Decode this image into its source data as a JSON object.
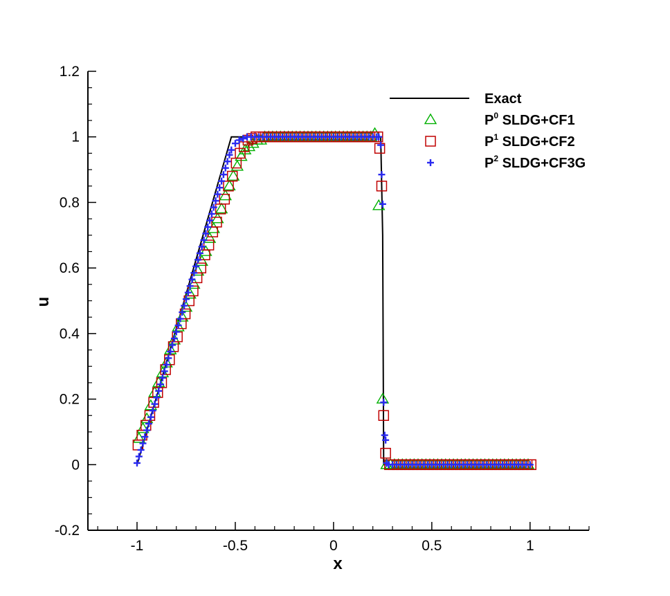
{
  "chart_data": {
    "type": "line",
    "xlabel": "x",
    "ylabel": "u",
    "xlim": [
      -1.25,
      1.3
    ],
    "ylim": [
      -0.2,
      1.2
    ],
    "x_ticks": [
      -1,
      -0.5,
      0,
      0.5,
      1
    ],
    "x_tick_labels": [
      "-1",
      "-0.5",
      "0",
      "0.5",
      "1"
    ],
    "y_ticks": [
      -0.2,
      0,
      0.2,
      0.4,
      0.6,
      0.8,
      1,
      1.2
    ],
    "y_tick_labels": [
      "-0.2",
      "0",
      "0.2",
      "0.4",
      "0.6",
      "0.8",
      "1",
      "1.2"
    ],
    "grid": false,
    "legend_position": "top-right",
    "series": [
      {
        "name": "Exact",
        "style": "line",
        "color": "#000000",
        "x": [
          -1.0,
          -0.52,
          0.24,
          0.25,
          0.255,
          1.0
        ],
        "y": [
          0.0,
          1.0,
          1.0,
          0.7,
          0.0,
          0.0
        ]
      },
      {
        "name_base": "P",
        "name_sup": "0",
        "name_rest": " SLDG+CF1",
        "marker": "triangle",
        "color": "#00b000",
        "x": [
          -0.99,
          -0.97,
          -0.95,
          -0.93,
          -0.91,
          -0.89,
          -0.87,
          -0.85,
          -0.83,
          -0.81,
          -0.79,
          -0.77,
          -0.75,
          -0.73,
          -0.71,
          -0.69,
          -0.67,
          -0.65,
          -0.63,
          -0.61,
          -0.59,
          -0.57,
          -0.55,
          -0.53,
          -0.51,
          -0.49,
          -0.47,
          -0.45,
          -0.43,
          -0.41,
          -0.39,
          -0.37,
          -0.35,
          -0.33,
          -0.31,
          -0.29,
          -0.27,
          -0.25,
          -0.23,
          -0.21,
          -0.19,
          -0.17,
          -0.15,
          -0.13,
          -0.11,
          -0.09,
          -0.07,
          -0.05,
          -0.03,
          -0.01,
          0.01,
          0.03,
          0.05,
          0.07,
          0.09,
          0.11,
          0.13,
          0.15,
          0.17,
          0.19,
          0.21,
          0.23,
          0.25,
          0.27,
          0.29,
          0.31,
          0.33,
          0.35,
          0.37,
          0.39,
          0.41,
          0.43,
          0.45,
          0.47,
          0.49,
          0.51,
          0.53,
          0.55,
          0.57,
          0.59,
          0.61,
          0.63,
          0.65,
          0.67,
          0.69,
          0.71,
          0.73,
          0.75,
          0.77,
          0.79,
          0.81,
          0.83,
          0.85,
          0.87,
          0.89,
          0.91,
          0.93,
          0.95,
          0.97,
          0.99
        ],
        "y": [
          0.08,
          0.11,
          0.14,
          0.18,
          0.22,
          0.25,
          0.28,
          0.31,
          0.35,
          0.38,
          0.42,
          0.45,
          0.48,
          0.52,
          0.55,
          0.59,
          0.62,
          0.65,
          0.69,
          0.72,
          0.75,
          0.78,
          0.82,
          0.85,
          0.88,
          0.91,
          0.94,
          0.96,
          0.97,
          0.98,
          0.99,
          0.99,
          1.0,
          1.0,
          1.0,
          1.0,
          1.0,
          1.0,
          1.0,
          1.0,
          1.0,
          1.0,
          1.0,
          1.0,
          1.0,
          1.0,
          1.0,
          1.0,
          1.0,
          1.0,
          1.0,
          1.0,
          1.0,
          1.0,
          1.0,
          1.0,
          1.0,
          1.0,
          1.0,
          1.0,
          1.01,
          0.79,
          0.2,
          0.0,
          0.0,
          0.0,
          0.0,
          0.0,
          0.0,
          0.0,
          0.0,
          0.0,
          0.0,
          0.0,
          0.0,
          0.0,
          0.0,
          0.0,
          0.0,
          0.0,
          0.0,
          0.0,
          0.0,
          0.0,
          0.0,
          0.0,
          0.0,
          0.0,
          0.0,
          0.0,
          0.0,
          0.0,
          0.0,
          0.0,
          0.0,
          0.0,
          0.0,
          0.0,
          0.0,
          0.0
        ]
      },
      {
        "name_base": "P",
        "name_sup": "1",
        "name_rest": " SLDG+CF2",
        "marker": "square",
        "color": "#c00000",
        "x": [
          -0.995,
          -0.975,
          -0.955,
          -0.935,
          -0.915,
          -0.895,
          -0.875,
          -0.855,
          -0.835,
          -0.815,
          -0.795,
          -0.775,
          -0.755,
          -0.735,
          -0.715,
          -0.695,
          -0.675,
          -0.655,
          -0.635,
          -0.615,
          -0.595,
          -0.575,
          -0.555,
          -0.535,
          -0.515,
          -0.495,
          -0.475,
          -0.455,
          -0.435,
          -0.415,
          -0.395,
          -0.375,
          -0.355,
          -0.335,
          -0.315,
          -0.295,
          -0.275,
          -0.255,
          -0.235,
          -0.215,
          -0.195,
          -0.175,
          -0.155,
          -0.135,
          -0.115,
          -0.095,
          -0.075,
          -0.055,
          -0.035,
          -0.015,
          0.005,
          0.025,
          0.045,
          0.065,
          0.085,
          0.105,
          0.125,
          0.145,
          0.165,
          0.185,
          0.205,
          0.225,
          0.235,
          0.245,
          0.255,
          0.265,
          0.285,
          0.305,
          0.325,
          0.345,
          0.365,
          0.385,
          0.405,
          0.425,
          0.445,
          0.465,
          0.485,
          0.505,
          0.525,
          0.545,
          0.565,
          0.585,
          0.605,
          0.625,
          0.645,
          0.665,
          0.685,
          0.705,
          0.725,
          0.745,
          0.765,
          0.785,
          0.805,
          0.825,
          0.845,
          0.865,
          0.885,
          0.905,
          0.925,
          0.945,
          0.965,
          0.985,
          1.005
        ],
        "y": [
          0.06,
          0.09,
          0.12,
          0.15,
          0.19,
          0.22,
          0.25,
          0.29,
          0.32,
          0.36,
          0.39,
          0.43,
          0.46,
          0.5,
          0.53,
          0.57,
          0.6,
          0.64,
          0.67,
          0.71,
          0.74,
          0.78,
          0.81,
          0.85,
          0.88,
          0.92,
          0.95,
          0.97,
          0.99,
          0.995,
          1.0,
          1.0,
          1.0,
          1.0,
          1.0,
          1.0,
          1.0,
          1.0,
          1.0,
          1.0,
          1.0,
          1.0,
          1.0,
          1.0,
          1.0,
          1.0,
          1.0,
          1.0,
          1.0,
          1.0,
          1.0,
          1.0,
          1.0,
          1.0,
          1.0,
          1.0,
          1.0,
          1.0,
          1.0,
          1.0,
          1.0,
          1.0,
          0.965,
          0.85,
          0.15,
          0.035,
          0.0,
          0.0,
          0.0,
          0.0,
          0.0,
          0.0,
          0.0,
          0.0,
          0.0,
          0.0,
          0.0,
          0.0,
          0.0,
          0.0,
          0.0,
          0.0,
          0.0,
          0.0,
          0.0,
          0.0,
          0.0,
          0.0,
          0.0,
          0.0,
          0.0,
          0.0,
          0.0,
          0.0,
          0.0,
          0.0,
          0.0,
          0.0,
          0.0,
          0.0,
          0.0,
          0.0,
          0.0
        ]
      },
      {
        "name_base": "P",
        "name_sup": "2",
        "name_rest": " SLDG+CF3G",
        "marker": "plus",
        "color": "#2a2af0",
        "x": [
          -1.0,
          -0.99,
          -0.98,
          -0.97,
          -0.96,
          -0.95,
          -0.94,
          -0.93,
          -0.92,
          -0.91,
          -0.9,
          -0.89,
          -0.88,
          -0.87,
          -0.86,
          -0.85,
          -0.84,
          -0.83,
          -0.82,
          -0.81,
          -0.8,
          -0.79,
          -0.78,
          -0.77,
          -0.76,
          -0.75,
          -0.74,
          -0.73,
          -0.72,
          -0.71,
          -0.7,
          -0.69,
          -0.68,
          -0.67,
          -0.66,
          -0.65,
          -0.64,
          -0.63,
          -0.62,
          -0.61,
          -0.6,
          -0.59,
          -0.58,
          -0.57,
          -0.56,
          -0.55,
          -0.54,
          -0.53,
          -0.52,
          -0.5,
          -0.48,
          -0.46,
          -0.44,
          -0.42,
          -0.4,
          -0.38,
          -0.36,
          -0.34,
          -0.32,
          -0.3,
          -0.28,
          -0.26,
          -0.24,
          -0.22,
          -0.2,
          -0.18,
          -0.16,
          -0.14,
          -0.12,
          -0.1,
          -0.08,
          -0.06,
          -0.04,
          -0.02,
          0.0,
          0.02,
          0.04,
          0.06,
          0.08,
          0.1,
          0.12,
          0.14,
          0.16,
          0.18,
          0.2,
          0.22,
          0.23,
          0.24,
          0.245,
          0.25,
          0.255,
          0.26,
          0.265,
          0.27,
          0.28,
          0.3,
          0.32,
          0.34,
          0.36,
          0.38,
          0.4,
          0.42,
          0.44,
          0.46,
          0.48,
          0.5,
          0.52,
          0.54,
          0.56,
          0.58,
          0.6,
          0.62,
          0.64,
          0.66,
          0.68,
          0.7,
          0.72,
          0.74,
          0.76,
          0.78,
          0.8,
          0.82,
          0.84,
          0.86,
          0.88,
          0.9,
          0.92,
          0.94,
          0.96,
          0.98,
          1.0
        ],
        "y": [
          0.005,
          0.025,
          0.045,
          0.065,
          0.085,
          0.105,
          0.125,
          0.145,
          0.165,
          0.185,
          0.205,
          0.225,
          0.245,
          0.265,
          0.285,
          0.305,
          0.325,
          0.345,
          0.365,
          0.385,
          0.405,
          0.425,
          0.445,
          0.465,
          0.485,
          0.505,
          0.525,
          0.545,
          0.565,
          0.585,
          0.605,
          0.625,
          0.645,
          0.665,
          0.685,
          0.705,
          0.725,
          0.745,
          0.765,
          0.785,
          0.805,
          0.825,
          0.845,
          0.865,
          0.885,
          0.905,
          0.925,
          0.945,
          0.96,
          0.98,
          0.99,
          0.995,
          1.0,
          1.0,
          1.0,
          1.0,
          1.0,
          1.0,
          1.0,
          1.0,
          1.0,
          1.0,
          1.0,
          1.0,
          1.0,
          1.0,
          1.0,
          1.0,
          1.0,
          1.0,
          1.0,
          1.0,
          1.0,
          1.0,
          1.0,
          1.0,
          1.0,
          1.0,
          1.0,
          1.0,
          1.0,
          1.0,
          1.0,
          1.0,
          1.0,
          1.0,
          1.0,
          0.975,
          0.885,
          0.795,
          0.19,
          0.09,
          0.075,
          0.005,
          0.0,
          0.0,
          0.0,
          0.0,
          0.0,
          0.0,
          0.0,
          0.0,
          0.0,
          0.0,
          0.0,
          0.0,
          0.0,
          0.0,
          0.0,
          0.0,
          0.0,
          0.0,
          0.0,
          0.0,
          0.0,
          0.0,
          0.0,
          0.0,
          0.0,
          0.0,
          0.0,
          0.0,
          0.0,
          0.0,
          0.0,
          0.0,
          0.0,
          0.0,
          0.0,
          0.0,
          0.0
        ]
      }
    ]
  }
}
